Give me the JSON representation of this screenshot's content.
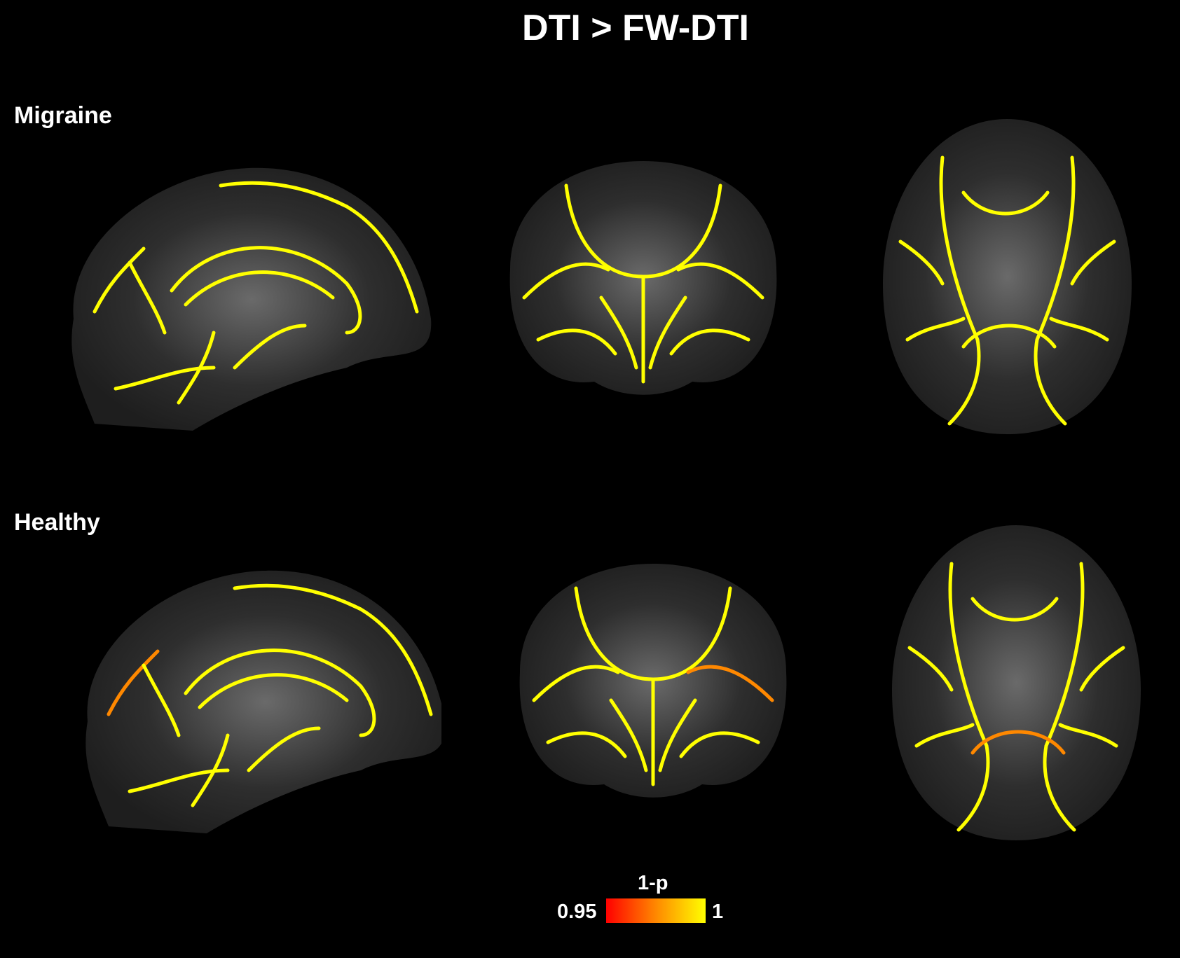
{
  "title": "DTI > FW-DTI",
  "rows": [
    {
      "label": "Migraine",
      "views": [
        "sagittal",
        "coronal",
        "axial"
      ]
    },
    {
      "label": "Healthy",
      "views": [
        "sagittal",
        "coronal",
        "axial"
      ]
    }
  ],
  "colorbar": {
    "label": "1-p",
    "min_label": "0.95",
    "max_label": "1",
    "min_color": "#ff0000",
    "max_color": "#ffff00"
  },
  "colors": {
    "background": "#000000",
    "tract": "#ffff00",
    "brain": "#3a3a3a"
  }
}
